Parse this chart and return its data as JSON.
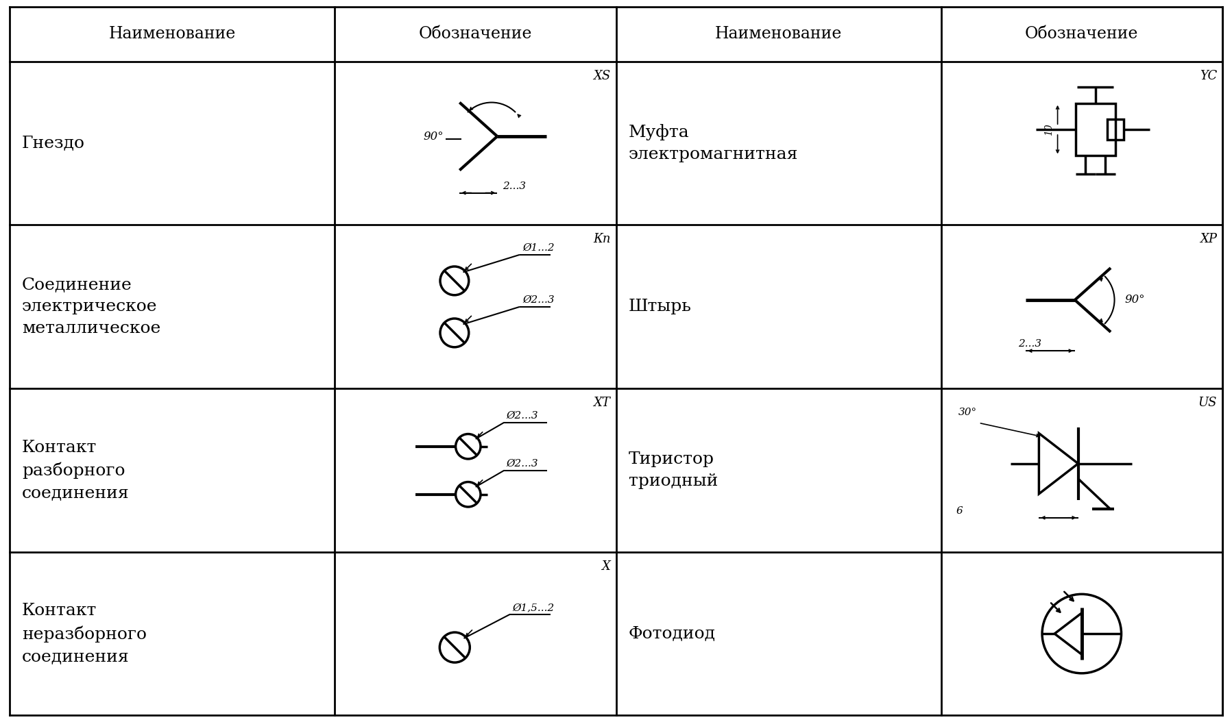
{
  "bg_color": "#ffffff",
  "line_color": "#000000",
  "col_labels": [
    "Наименование",
    "Обозначение",
    "Наименование",
    "Обозначение"
  ],
  "row_names_left": [
    "Гнездо",
    "Соединение\nэлектрическое\nметаллическое",
    "Контакт\nразборного\nсоединения",
    "Контакт\nнеразборного\nсоединения"
  ],
  "row_names_right": [
    "Муфта\nэлектромагнитная",
    "Штырь",
    "Тиристор\nтриодный",
    "Фотодиод"
  ],
  "ref_labels_col1": [
    "XS",
    "Кп",
    "XT",
    "X"
  ],
  "ref_labels_col3": [
    "YC",
    "XP",
    "US",
    ""
  ],
  "font_size_header": 17,
  "font_size_cell": 18,
  "font_size_ref": 13,
  "font_size_annot": 11
}
